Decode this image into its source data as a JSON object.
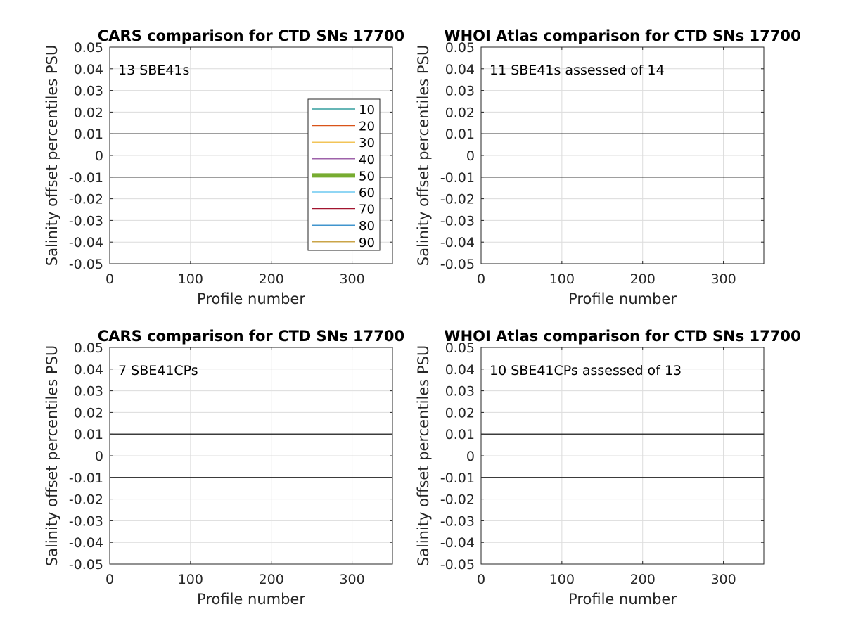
{
  "chart_data": [
    {
      "type": "line",
      "title": "CARS comparison for CTD SNs 17700",
      "xlabel": "Profile number",
      "ylabel": "Salinity offset percentiles PSU",
      "xlim": [
        0,
        350
      ],
      "ylim": [
        -0.05,
        0.05
      ],
      "xticks": [
        0,
        100,
        200,
        300
      ],
      "xtick_labels": [
        "0",
        "100",
        "200",
        "300"
      ],
      "yticks": [
        0.05,
        0.04,
        0.03,
        0.02,
        0.01,
        0,
        -0.01,
        -0.02,
        -0.03,
        -0.04,
        -0.05
      ],
      "ytick_labels": [
        "0.05",
        "0.04",
        "0.03",
        "0.02",
        "0.01",
        "0",
        "-0.01",
        "-0.02",
        "-0.03",
        "-0.04",
        "-0.05"
      ],
      "grid": true,
      "reference_lines": [
        0.01,
        -0.01
      ],
      "annotation": "13 SBE41s",
      "legend_placement": "right",
      "series": []
    },
    {
      "type": "line",
      "title": "WHOI Atlas comparison for CTD SNs 17700",
      "xlabel": "Profile number",
      "ylabel": "Salinity offset percentiles PSU",
      "xlim": [
        0,
        350
      ],
      "ylim": [
        -0.05,
        0.05
      ],
      "xticks": [
        0,
        100,
        200,
        300
      ],
      "xtick_labels": [
        "0",
        "100",
        "200",
        "300"
      ],
      "yticks": [
        0.05,
        0.04,
        0.03,
        0.02,
        0.01,
        0,
        -0.01,
        -0.02,
        -0.03,
        -0.04,
        -0.05
      ],
      "ytick_labels": [
        "0.05",
        "0.04",
        "0.03",
        "0.02",
        "0.01",
        "0",
        "-0.01",
        "-0.02",
        "-0.03",
        "-0.04",
        "-0.05"
      ],
      "grid": true,
      "reference_lines": [
        0.01,
        -0.01
      ],
      "annotation": "11 SBE41s assessed of 14",
      "series": []
    },
    {
      "type": "line",
      "title": "CARS comparison for CTD SNs 17700",
      "xlabel": "Profile number",
      "ylabel": "Salinity offset percentiles PSU",
      "xlim": [
        0,
        350
      ],
      "ylim": [
        -0.05,
        0.05
      ],
      "xticks": [
        0,
        100,
        200,
        300
      ],
      "xtick_labels": [
        "0",
        "100",
        "200",
        "300"
      ],
      "yticks": [
        0.05,
        0.04,
        0.03,
        0.02,
        0.01,
        0,
        -0.01,
        -0.02,
        -0.03,
        -0.04,
        -0.05
      ],
      "ytick_labels": [
        "0.05",
        "0.04",
        "0.03",
        "0.02",
        "0.01",
        "0",
        "-0.01",
        "-0.02",
        "-0.03",
        "-0.04",
        "-0.05"
      ],
      "grid": true,
      "reference_lines": [
        0.01,
        -0.01
      ],
      "annotation": "7 SBE41CPs",
      "series": []
    },
    {
      "type": "line",
      "title": "WHOI Atlas comparison for CTD SNs 17700",
      "xlabel": "Profile number",
      "ylabel": "Salinity offset percentiles PSU",
      "xlim": [
        0,
        350
      ],
      "ylim": [
        -0.05,
        0.05
      ],
      "xticks": [
        0,
        100,
        200,
        300
      ],
      "xtick_labels": [
        "0",
        "100",
        "200",
        "300"
      ],
      "yticks": [
        0.05,
        0.04,
        0.03,
        0.02,
        0.01,
        0,
        -0.01,
        -0.02,
        -0.03,
        -0.04,
        -0.05
      ],
      "ytick_labels": [
        "0.05",
        "0.04",
        "0.03",
        "0.02",
        "0.01",
        "0",
        "-0.01",
        "-0.02",
        "-0.03",
        "-0.04",
        "-0.05"
      ],
      "grid": true,
      "reference_lines": [
        0.01,
        -0.01
      ],
      "annotation": "10 SBE41CPs assessed of 13",
      "series": []
    }
  ],
  "legend": {
    "entries": [
      {
        "label": "10",
        "color": "#0a8b8b",
        "emphasis": false
      },
      {
        "label": "20",
        "color": "#d95319",
        "emphasis": false
      },
      {
        "label": "30",
        "color": "#edb120",
        "emphasis": false
      },
      {
        "label": "40",
        "color": "#7e2f8e",
        "emphasis": false
      },
      {
        "label": "50",
        "color": "#77ac30",
        "emphasis": true
      },
      {
        "label": "60",
        "color": "#4dbeee",
        "emphasis": false
      },
      {
        "label": "70",
        "color": "#a2142f",
        "emphasis": false
      },
      {
        "label": "80",
        "color": "#0072bd",
        "emphasis": false
      },
      {
        "label": "90",
        "color": "#b8860b",
        "emphasis": false
      }
    ]
  }
}
